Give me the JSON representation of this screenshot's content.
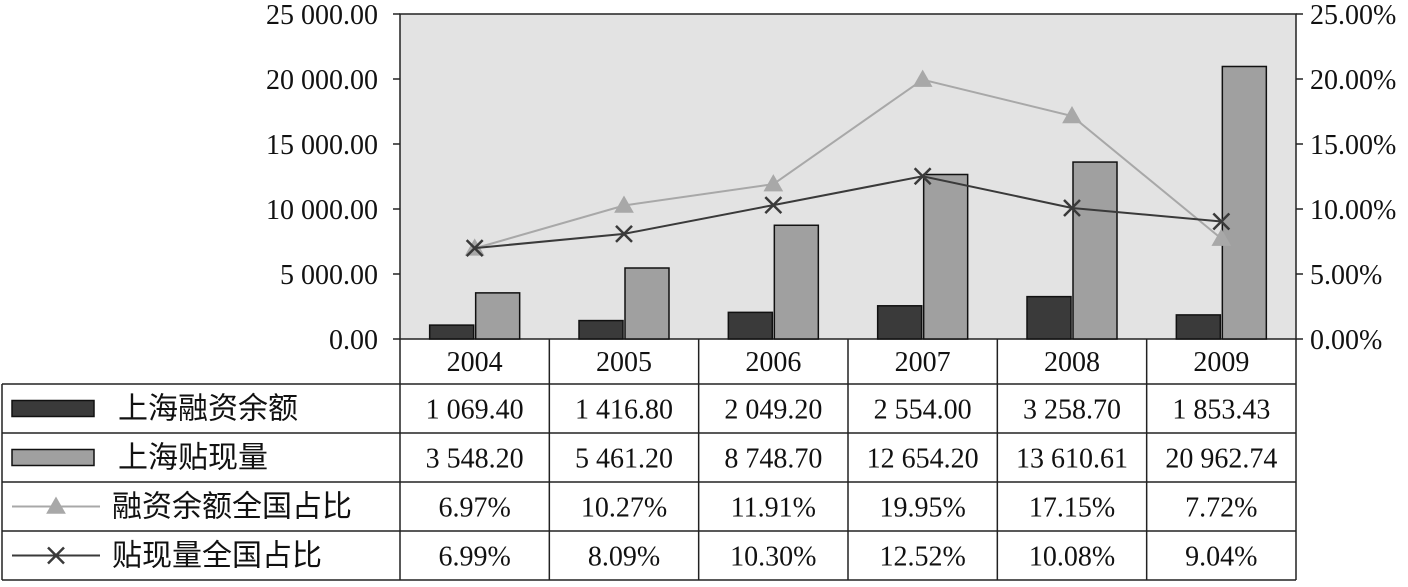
{
  "chart_data": {
    "type": "bar",
    "categories": [
      "2004",
      "2005",
      "2006",
      "2007",
      "2008",
      "2009"
    ],
    "left_axis": {
      "ylim": [
        0,
        25000
      ],
      "ticks": [
        0,
        5000,
        10000,
        15000,
        20000,
        25000
      ],
      "tick_labels": [
        "0.00",
        "5 000.00",
        "10 000.00",
        "15 000.00",
        "20 000.00",
        "25 000.00"
      ]
    },
    "right_axis": {
      "ylim": [
        0,
        25
      ],
      "ticks": [
        0,
        5,
        10,
        15,
        20,
        25
      ],
      "tick_labels": [
        "0.00%",
        "5.00%",
        "10.00%",
        "15.00%",
        "20.00%",
        "25.00%"
      ]
    },
    "series": [
      {
        "name": "上海融资余额",
        "kind": "bar",
        "axis": "left",
        "color": "#3a3a3a",
        "values": [
          1069.4,
          1416.8,
          2049.2,
          2554.0,
          3258.7,
          1853.43
        ],
        "labels": [
          "1 069.40",
          "1 416.80",
          "2 049.20",
          "2 554.00",
          "3 258.70",
          "1 853.43"
        ]
      },
      {
        "name": "上海贴现量",
        "kind": "bar",
        "axis": "left",
        "color": "#a0a0a0",
        "values": [
          3548.2,
          5461.2,
          8748.7,
          12654.2,
          13610.61,
          20962.74
        ],
        "labels": [
          "3 548.20",
          "5 461.20",
          "8 748.70",
          "12 654.20",
          "13 610.61",
          "20 962.74"
        ]
      },
      {
        "name": "融资余额全国占比",
        "kind": "line",
        "marker": "triangle",
        "axis": "right",
        "color": "#a8a8a8",
        "values": [
          6.97,
          10.27,
          11.91,
          19.95,
          17.15,
          7.72
        ],
        "labels": [
          "6.97%",
          "10.27%",
          "11.91%",
          "19.95%",
          "17.15%",
          "7.72%"
        ]
      },
      {
        "name": "贴现量全国占比",
        "kind": "line",
        "marker": "x",
        "axis": "right",
        "color": "#3a3a3a",
        "values": [
          6.99,
          8.09,
          10.3,
          12.52,
          10.08,
          9.04
        ],
        "labels": [
          "6.99%",
          "8.09%",
          "10.30%",
          "12.52%",
          "10.08%",
          "9.04%"
        ]
      }
    ],
    "plot_background": "#e3e3e3",
    "grid": false,
    "data_table": true
  }
}
